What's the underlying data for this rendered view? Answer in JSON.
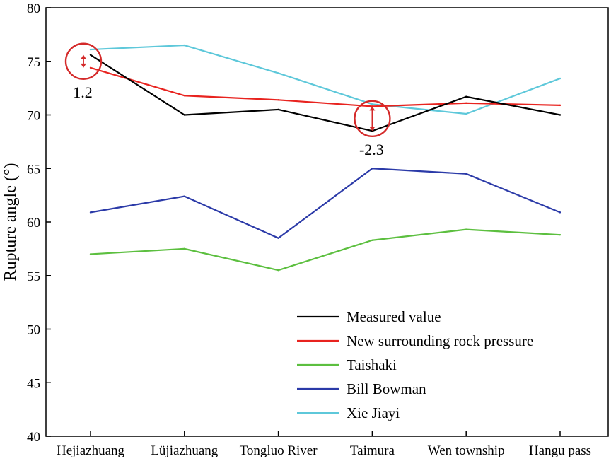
{
  "chart_data": {
    "type": "line",
    "categories": [
      "Hejiazhuang",
      "Lüjiazhuang",
      "Tongluo River",
      "Taimura",
      "Wen township",
      "Hangu pass"
    ],
    "xlabel": "",
    "ylabel": "Rupture angle (°)",
    "ylim": [
      40,
      80
    ],
    "yticks": [
      40,
      45,
      50,
      55,
      60,
      65,
      70,
      75,
      80
    ],
    "grid": false,
    "legend_position": "bottom-right",
    "series": [
      {
        "name": "Measured value",
        "color": "#000000",
        "values": [
          75.6,
          70.0,
          70.5,
          68.5,
          71.7,
          70.0
        ]
      },
      {
        "name": "New surrounding rock pressure",
        "color": "#e8231f",
        "values": [
          74.4,
          71.8,
          71.4,
          70.8,
          71.1,
          70.9
        ]
      },
      {
        "name": "Taishaki",
        "color": "#5cbf3f",
        "values": [
          57.0,
          57.5,
          55.5,
          58.3,
          59.3,
          58.8
        ]
      },
      {
        "name": "Bill Bowman",
        "color": "#2b3aa8",
        "values": [
          60.9,
          62.4,
          58.5,
          65.0,
          64.5,
          60.9
        ]
      },
      {
        "name": "Xie Jiayi",
        "color": "#5ec8da",
        "values": [
          76.1,
          76.5,
          73.9,
          71.0,
          70.1,
          73.4
        ]
      }
    ],
    "annotations": [
      {
        "text": "1.2",
        "category": "Hejiazhuang",
        "y_from": 74.4,
        "y_to": 75.6,
        "color": "#d42a2a"
      },
      {
        "text": "-2.3",
        "category": "Taimura",
        "y_from": 68.5,
        "y_to": 70.8,
        "color": "#d42a2a"
      }
    ]
  }
}
